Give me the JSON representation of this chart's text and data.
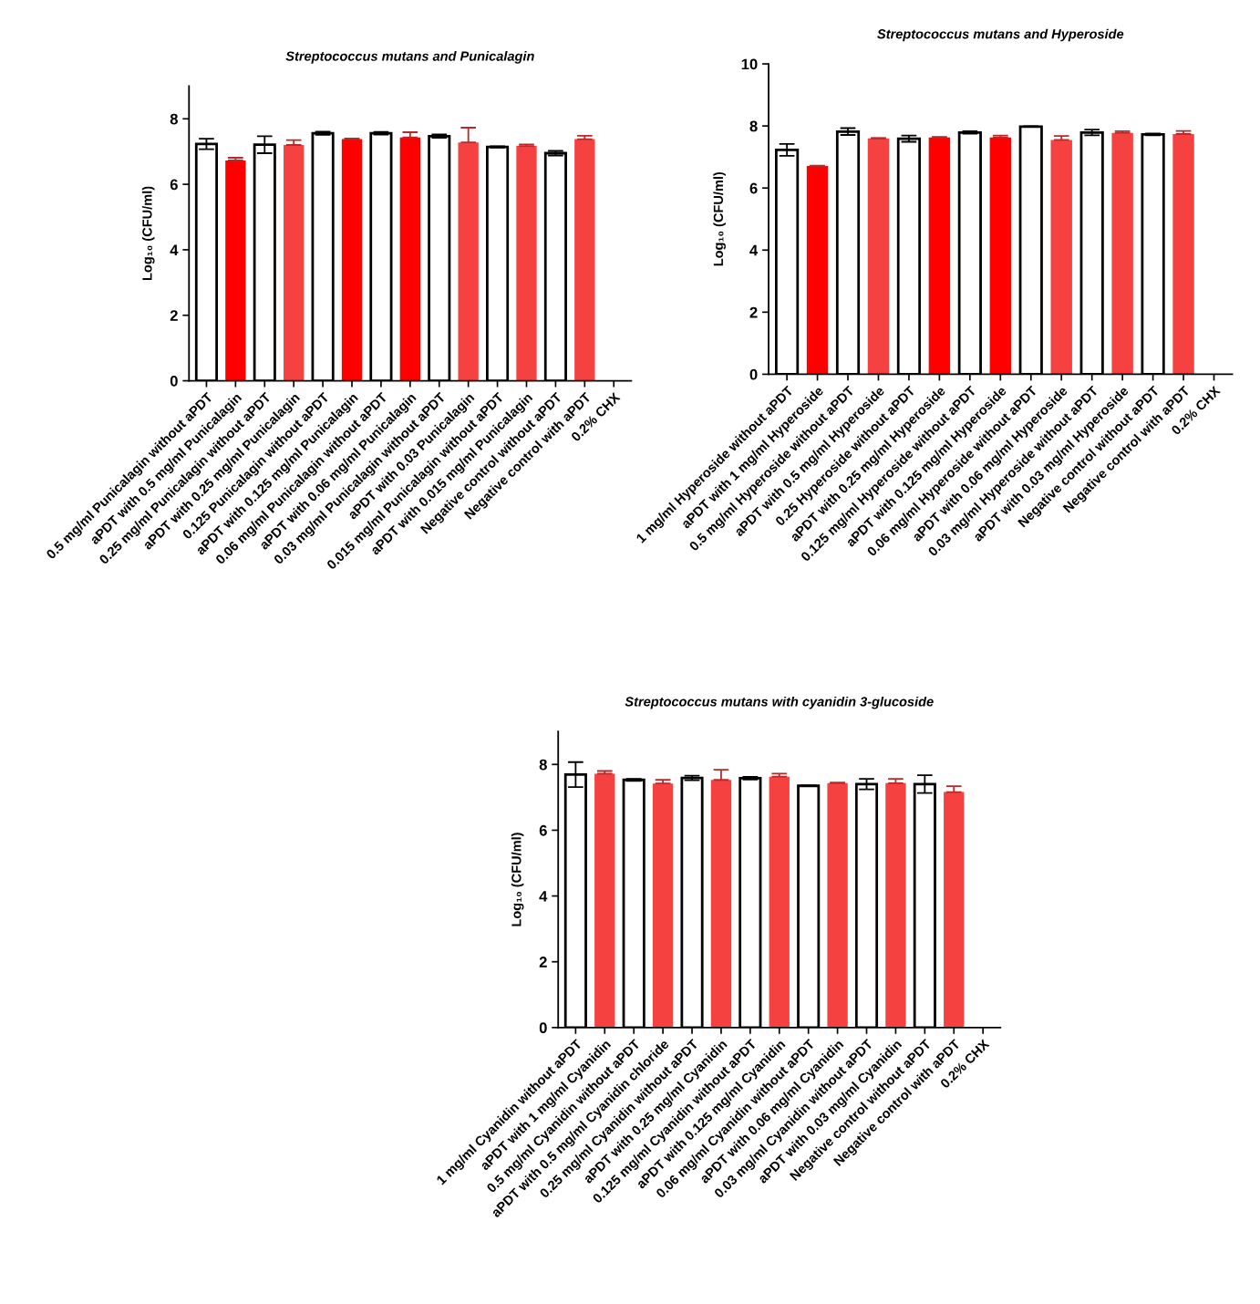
{
  "chart_data": [
    {
      "type": "bar",
      "title": "Streptococcus mutans and Punicalagin",
      "ylabel": "Log₁₀ (CFU/ml)",
      "categories": [
        "0.5 mg/ml Punicalagin without aPDT",
        "aPDT with 0.5 mg/ml Punicalagin",
        "0.25 mg/ml Punicalagin without aPDT",
        "aPDT with 0.25 mg/ml Punicalagin",
        "0.125 Punicalagin without aPDT",
        "aPDT with 0.125 mg/ml Punicalagin",
        "0.06 mg/ml Punicalagin without aPDT",
        "aPDT with 0.06 mg/ml Punicalagin",
        "0.03 mg/ml Punicalagin without aPDT",
        "aPDT with 0.03 Punicalagin",
        "0.015 mg/ml Punicalagin without aPDT",
        "aPDT with 0.015 mg/ml Punicalagin",
        "Negative control without aPDT",
        "Negative control with aPDT",
        "0.2% CHX"
      ],
      "values": [
        7.23,
        6.73,
        7.21,
        7.2,
        7.56,
        7.38,
        7.56,
        7.43,
        7.47,
        7.28,
        7.14,
        7.17,
        6.95,
        7.38,
        null
      ],
      "errors": [
        0.16,
        0.08,
        0.26,
        0.15,
        0.05,
        0.02,
        0.04,
        0.16,
        0.05,
        0.45,
        0.02,
        0.05,
        0.07,
        0.1,
        null
      ],
      "colors": [
        "#ffffff",
        "#ff0000",
        "#ffffff",
        "#f64141",
        "#ffffff",
        "#ff0000",
        "#ffffff",
        "#ff0000",
        "#ffffff",
        "#f64141",
        "#ffffff",
        "#f64141",
        "#ffffff",
        "#f64141",
        null
      ],
      "ylim": [
        0,
        9
      ],
      "yticks": [
        0,
        2,
        4,
        6,
        8
      ],
      "grid": false,
      "legend": false
    },
    {
      "type": "bar",
      "title": "Streptococcus mutans and Hyperoside",
      "ylabel": "Log₁₀ (CFU/ml)",
      "categories": [
        "1 mg/ml Hyperoside without aPDT",
        "aPDT with 1 mg/ml Hyperoside",
        "0.5 mg/ml Hyperoside without aPDT",
        "aPDT with 0.5 mg/ml Hyperoside",
        "0.25 Hyperoside without aPDT",
        "aPDT with 0.25 mg/ml Hyperoside",
        "0.125 mg/ml Hyperoside without aPDT",
        "aPDT with 0.125 mg/ml Hyperoside",
        "0.06 mg/ml Hyperoside without aPDT",
        "aPDT with 0.06 mg/ml Hyperoside",
        "0.03 mg/ml Hyperoside without aPDT",
        "aPDT with 0.03 mg/ml Hyperoside",
        "Negative control without aPDT",
        "Negative control with aPDT",
        "0.2% CHX"
      ],
      "values": [
        7.23,
        6.71,
        7.82,
        7.6,
        7.59,
        7.63,
        7.79,
        7.63,
        7.98,
        7.55,
        7.79,
        7.78,
        7.73,
        7.74,
        null
      ],
      "errors": [
        0.19,
        0.01,
        0.11,
        0.01,
        0.1,
        0.02,
        0.04,
        0.06,
        0.01,
        0.13,
        0.09,
        0.05,
        0.03,
        0.1,
        null
      ],
      "colors": [
        "#ffffff",
        "#ff0000",
        "#ffffff",
        "#f64141",
        "#ffffff",
        "#ff0000",
        "#ffffff",
        "#ff0000",
        "#ffffff",
        "#f64141",
        "#ffffff",
        "#f64141",
        "#ffffff",
        "#f64141",
        null
      ],
      "ylim": [
        0,
        10
      ],
      "yticks": [
        0,
        2,
        4,
        6,
        8,
        10
      ],
      "grid": false,
      "legend": false
    },
    {
      "type": "bar",
      "title": "Streptococcus mutans with cyanidin 3-glucoside",
      "ylabel": "Log₁₀ (CFU/ml)",
      "categories": [
        "1 mg/ml Cyanidin without aPDT",
        "aPDT with 1 mg/ml Cyanidin",
        "0.5 mg/ml Cyanidin without aPDT",
        "aPDT with 0.5 mg/ml Cyanidin chloride",
        "0.25 mg/ml Cyanidin without aPDT",
        "aPDT with 0.25 mg/ml Cyanidin",
        "0.125 mg/ml Cyanidin without aPDT",
        "aPDT with 0.125 mg/ml Cyanidin",
        "0.06 mg/ml Cyanidin without aPDT",
        "aPDT with 0.06 mg/ml Cyanidin",
        "0.03 mg/ml Cyanidin without aPDT",
        "aPDT with 0.03 mg/ml Cyanidin",
        "Negative control without aPDT",
        "Negative control with aPDT",
        "0.2% CHX"
      ],
      "values": [
        7.69,
        7.72,
        7.53,
        7.42,
        7.59,
        7.53,
        7.58,
        7.63,
        7.35,
        7.43,
        7.4,
        7.43,
        7.4,
        7.16,
        null
      ],
      "errors": [
        0.38,
        0.08,
        0.03,
        0.11,
        0.07,
        0.31,
        0.04,
        0.09,
        0.01,
        0.02,
        0.16,
        0.13,
        0.27,
        0.18,
        null
      ],
      "colors": [
        "#ffffff",
        "#f64141",
        "#ffffff",
        "#f64141",
        "#ffffff",
        "#f64141",
        "#ffffff",
        "#f64141",
        "#ffffff",
        "#f64141",
        "#ffffff",
        "#f64141",
        "#ffffff",
        "#f64141",
        null
      ],
      "ylim": [
        0,
        9
      ],
      "yticks": [
        0,
        2,
        4,
        6,
        8
      ],
      "grid": false,
      "legend": false
    }
  ]
}
